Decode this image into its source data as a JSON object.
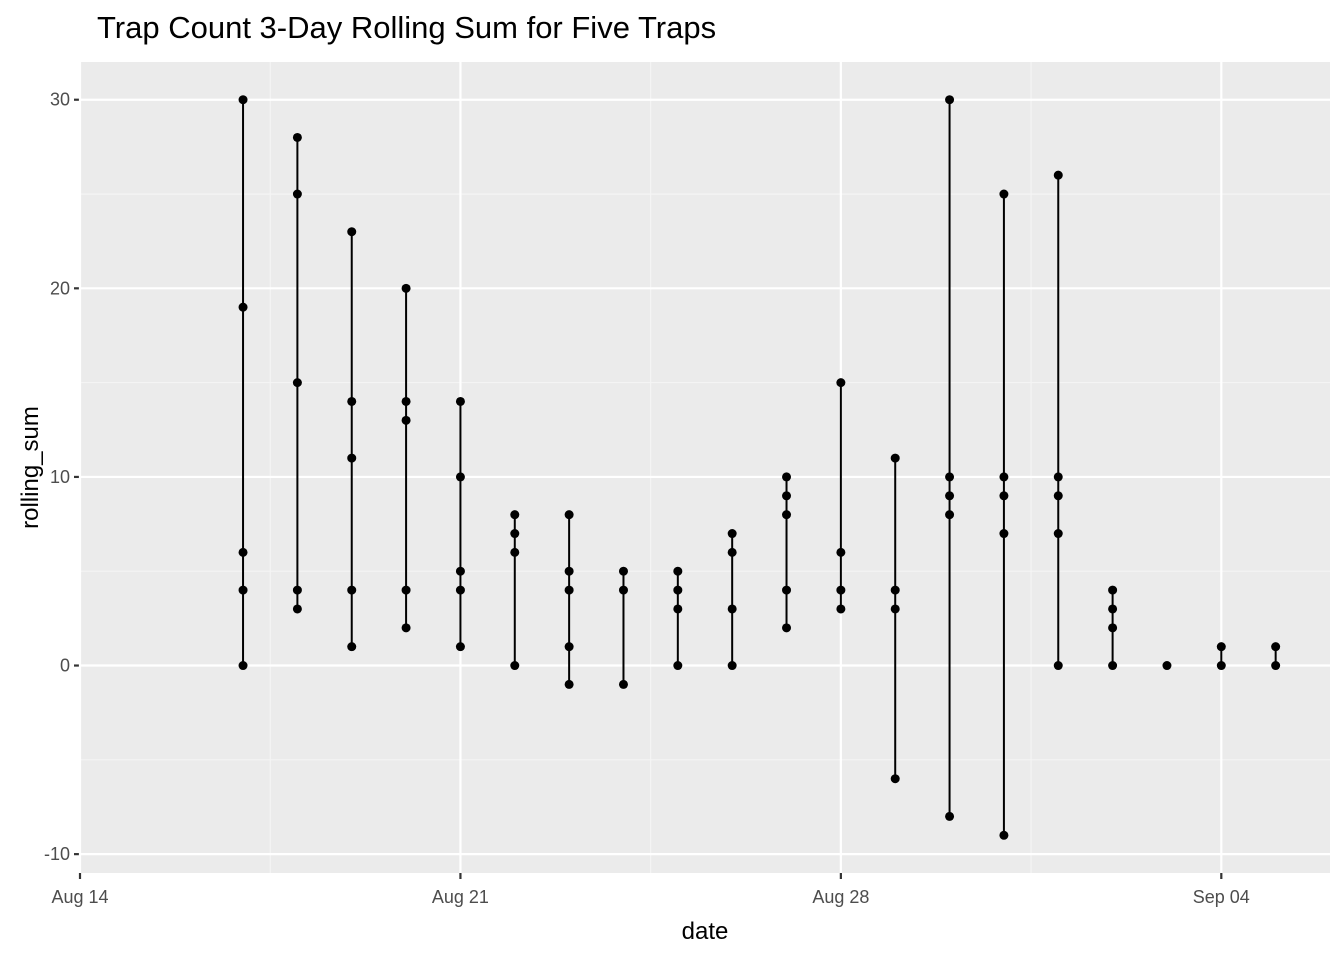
{
  "chart_data": {
    "type": "scatter",
    "title": "Trap Count 3-Day Rolling Sum for Five Traps",
    "xlabel": "date",
    "ylabel": "rolling_sum",
    "x_ticks": [
      {
        "date": "2023-08-14",
        "label": "Aug 14"
      },
      {
        "date": "2023-08-21",
        "label": "Aug 21"
      },
      {
        "date": "2023-08-28",
        "label": "Aug 28"
      },
      {
        "date": "2023-09-04",
        "label": "Sep 04"
      }
    ],
    "y_ticks": [
      {
        "value": -10,
        "label": "-10"
      },
      {
        "value": 0,
        "label": "0"
      },
      {
        "value": 10,
        "label": "10"
      },
      {
        "value": 20,
        "label": "20"
      },
      {
        "value": 30,
        "label": "30"
      }
    ],
    "xlim": [
      "2023-08-14",
      "2023-09-06"
    ],
    "ylim": [
      -11,
      32
    ],
    "grid": true,
    "points": [
      {
        "x": "2023-08-17",
        "values": [
          0,
          4,
          6,
          19,
          30
        ]
      },
      {
        "x": "2023-08-18",
        "values": [
          3,
          4,
          15,
          25,
          28
        ]
      },
      {
        "x": "2023-08-19",
        "values": [
          1,
          4,
          11,
          14,
          23
        ]
      },
      {
        "x": "2023-08-20",
        "values": [
          2,
          4,
          13,
          14,
          20
        ]
      },
      {
        "x": "2023-08-21",
        "values": [
          1,
          4,
          5,
          10,
          14
        ]
      },
      {
        "x": "2023-08-22",
        "values": [
          0,
          6,
          7,
          8
        ]
      },
      {
        "x": "2023-08-23",
        "values": [
          -1,
          1,
          4,
          5,
          8
        ]
      },
      {
        "x": "2023-08-24",
        "values": [
          -1,
          4,
          5
        ]
      },
      {
        "x": "2023-08-25",
        "values": [
          0,
          3,
          4,
          5
        ]
      },
      {
        "x": "2023-08-26",
        "values": [
          0,
          3,
          6,
          7
        ]
      },
      {
        "x": "2023-08-27",
        "values": [
          2,
          4,
          8,
          9,
          10
        ]
      },
      {
        "x": "2023-08-28",
        "values": [
          3,
          4,
          6,
          15
        ]
      },
      {
        "x": "2023-08-29",
        "values": [
          -6,
          3,
          4,
          11
        ]
      },
      {
        "x": "2023-08-30",
        "values": [
          -8,
          8,
          9,
          10,
          30
        ]
      },
      {
        "x": "2023-08-31",
        "values": [
          -9,
          7,
          9,
          10,
          25
        ]
      },
      {
        "x": "2023-09-01",
        "values": [
          0,
          7,
          9,
          10,
          26
        ]
      },
      {
        "x": "2023-09-02",
        "values": [
          0,
          2,
          3,
          4
        ]
      },
      {
        "x": "2023-09-03",
        "values": [
          0
        ]
      },
      {
        "x": "2023-09-04",
        "values": [
          0,
          1
        ]
      },
      {
        "x": "2023-09-05",
        "values": [
          0,
          1
        ]
      }
    ],
    "colors": {
      "panel_background": "#ebebeb",
      "grid_major": "#ffffff",
      "grid_minor": "#f5f5f5",
      "series": "#000000",
      "tick_label": "#4d4d4d"
    }
  }
}
